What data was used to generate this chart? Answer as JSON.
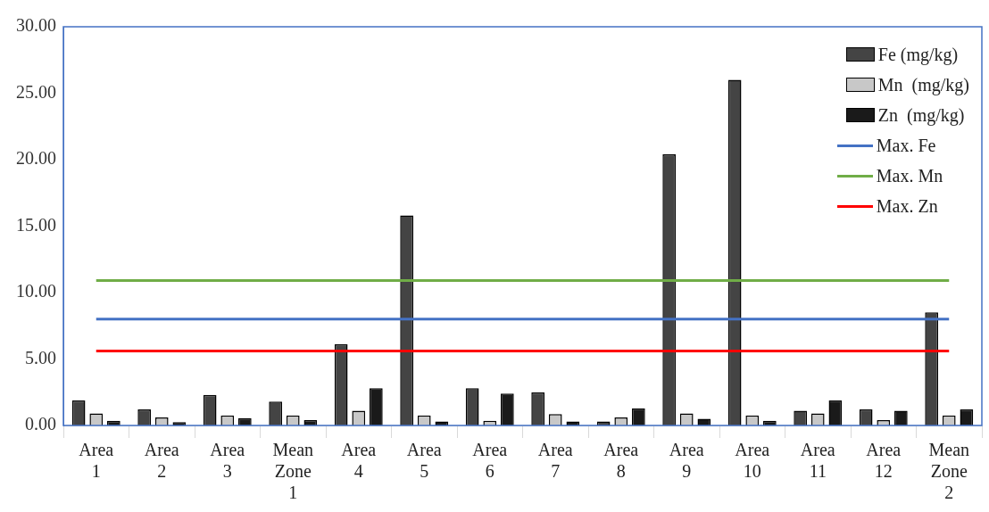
{
  "chart_data": {
    "type": "bar",
    "categories": [
      "Area 1",
      "Area 2",
      "Area 3",
      "Mean Zone 1",
      "Area 4",
      "Area 5",
      "Area 6",
      "Area 7",
      "Area 8",
      "Area 9",
      "Area 10",
      "Area 11",
      "Area 12",
      "Mean Zone 2"
    ],
    "series": [
      {
        "name": "Fe (mg/kg)",
        "color": "#444444",
        "values": [
          1.9,
          1.2,
          2.3,
          1.8,
          6.1,
          15.8,
          2.8,
          2.5,
          0.3,
          20.4,
          26.0,
          1.1,
          1.2,
          8.5
        ]
      },
      {
        "name": "Mn  (mg/kg)",
        "color": "#c8c8c8",
        "values": [
          0.9,
          0.6,
          0.75,
          0.75,
          1.1,
          0.75,
          0.35,
          0.85,
          0.6,
          0.9,
          0.75,
          0.9,
          0.4,
          0.75
        ]
      },
      {
        "name": "Zn  (mg/kg)",
        "color": "#1a1a1a",
        "values": [
          0.35,
          0.25,
          0.55,
          0.4,
          2.8,
          0.3,
          2.4,
          0.3,
          1.3,
          0.5,
          0.35,
          1.9,
          1.1,
          1.2
        ]
      },
      {
        "name": "Max. Fe",
        "type": "line",
        "color": "#4472c4",
        "values": [
          8.0,
          8.0,
          8.0,
          8.0,
          8.0,
          8.0,
          8.0,
          8.0,
          8.0,
          8.0,
          8.0,
          8.0,
          8.0,
          8.0
        ]
      },
      {
        "name": "Max. Mn",
        "type": "line",
        "color": "#70ad47",
        "values": [
          10.9,
          10.9,
          10.9,
          10.9,
          10.9,
          10.9,
          10.9,
          10.9,
          10.9,
          10.9,
          10.9,
          10.9,
          10.9,
          10.9
        ]
      },
      {
        "name": "Max. Zn",
        "type": "line",
        "color": "#ff0000",
        "values": [
          5.6,
          5.6,
          5.6,
          5.6,
          5.6,
          5.6,
          5.6,
          5.6,
          5.6,
          5.6,
          5.6,
          5.6,
          5.6,
          5.6
        ]
      }
    ],
    "ylim": [
      0,
      30
    ],
    "yticks": [
      {
        "value": 0,
        "label": "0.00"
      },
      {
        "value": 5,
        "label": "5.00"
      },
      {
        "value": 10,
        "label": "10.00"
      },
      {
        "value": 15,
        "label": "15.00"
      },
      {
        "value": 20,
        "label": "20.00"
      },
      {
        "value": 25,
        "label": "25.00"
      },
      {
        "value": 30,
        "label": "30.00"
      }
    ],
    "grid": false,
    "legend": "top right",
    "marker": "none"
  }
}
